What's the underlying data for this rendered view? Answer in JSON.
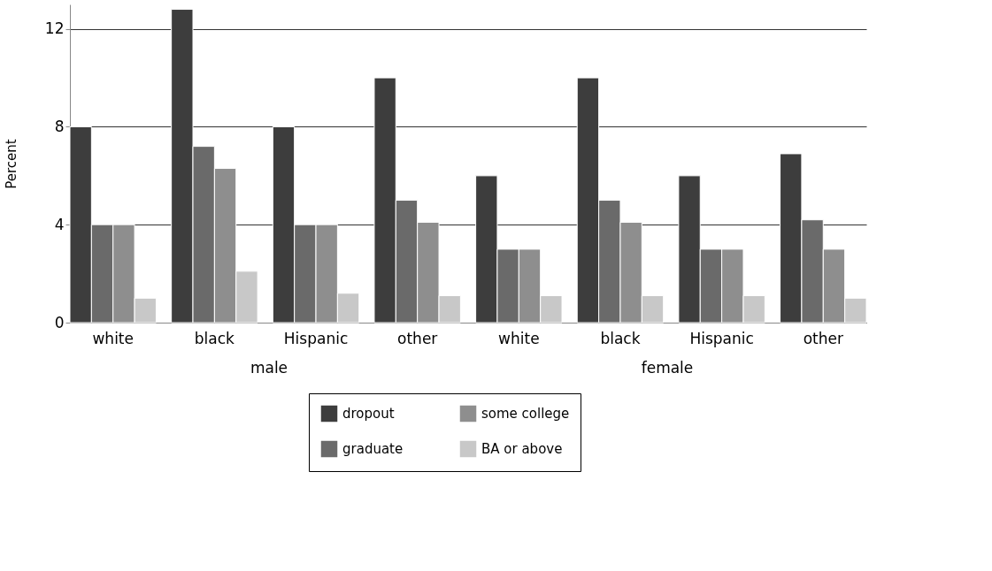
{
  "chart_data": {
    "type": "bar",
    "ylabel": "Percent",
    "categories": [
      "white",
      "black",
      "Hispanic",
      "other",
      "white",
      "black",
      "Hispanic",
      "other"
    ],
    "series": [
      {
        "name": "dropout",
        "color": "#3d3d3d",
        "values": [
          8,
          12.8,
          8,
          10,
          6,
          10,
          6,
          6.9
        ]
      },
      {
        "name": "graduate",
        "color": "#6a6a6a",
        "values": [
          4,
          7.2,
          4,
          5,
          3,
          5,
          3,
          4.2
        ]
      },
      {
        "name": "some college",
        "color": "#8e8e8e",
        "values": [
          4,
          6.3,
          4,
          4.1,
          3,
          4.1,
          3,
          3
        ]
      },
      {
        "name": "BA or above",
        "color": "#c8c8c8",
        "values": [
          1,
          2.1,
          1.2,
          1.1,
          1.1,
          1.1,
          1.1,
          1
        ]
      }
    ],
    "ylim": [
      0,
      13
    ],
    "yticks": [
      0,
      4,
      8,
      12
    ],
    "grid": "y",
    "legend": "bottom",
    "annotations": [
      "male",
      "female"
    ]
  }
}
